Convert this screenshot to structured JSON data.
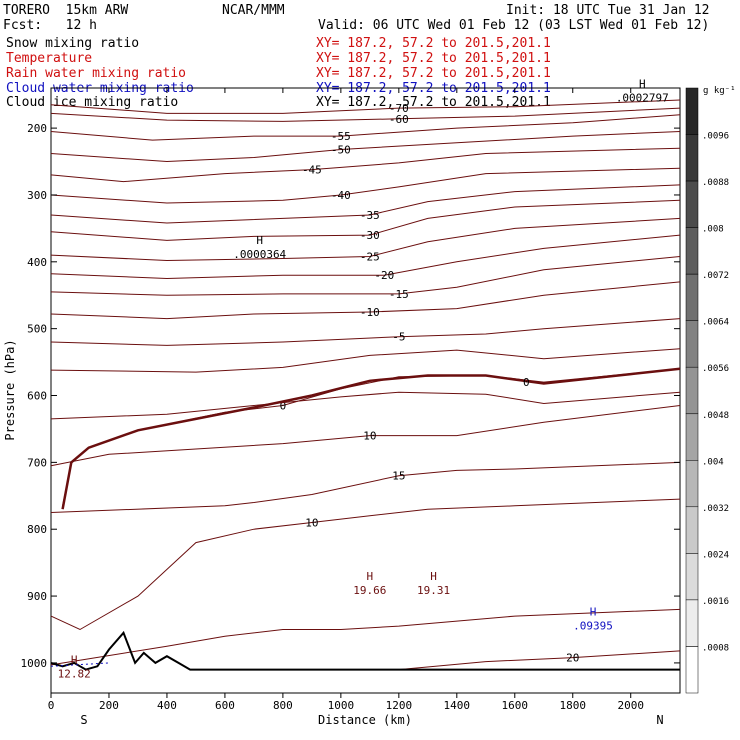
{
  "header": {
    "model": "TORERO  15km ARW",
    "center": "NCAR/MMM",
    "init": "Init: 18 UTC Tue 31 Jan 12",
    "fcst": "Fcst:   12 h",
    "valid": "Valid: 06 UTC Wed 01 Feb 12 (03 LST Wed 01 Feb 12)"
  },
  "fields": [
    {
      "name": "Snow mixing ratio",
      "xy": "XY= 187.2, 57.2 to 201.5,201.1",
      "color": "#000000"
    },
    {
      "name": "Temperature",
      "xy": "XY= 187.2, 57.2 to 201.5,201.1",
      "color": "#d01010"
    },
    {
      "name": "Rain water mixing ratio",
      "xy": "XY= 187.2, 57.2 to 201.5,201.1",
      "color": "#d01010"
    },
    {
      "name": "Cloud water mixing ratio",
      "xy": "XY= 187.2, 57.2 to 201.5,201.1",
      "color": "#1010c0"
    },
    {
      "name": "Cloud ice mixing ratio",
      "xy": "XY= 187.2, 57.2 to 201.5,201.1",
      "color": "#000000"
    }
  ],
  "chart_data": {
    "type": "contour-cross-section",
    "xlabel": "Distance (km)",
    "ylabel": "Pressure (hPa)",
    "xlim": [
      0,
      2170
    ],
    "ylim": [
      1045,
      140
    ],
    "x_ticks": [
      0,
      200,
      400,
      600,
      800,
      1000,
      1200,
      1400,
      1600,
      1800,
      2000
    ],
    "x_tick_labels": [
      "0",
      "200",
      "400",
      "600",
      "800",
      "1000",
      "1200",
      "1400",
      "1600",
      "1800",
      "2000"
    ],
    "y_ticks": [
      200,
      300,
      400,
      500,
      600,
      700,
      800,
      900,
      1000
    ],
    "y_tick_labels": [
      "200",
      "300",
      "400",
      "500",
      "600",
      "700",
      "800",
      "900",
      "1000"
    ],
    "end_labels": {
      "left": "S",
      "right": "N"
    },
    "colorbar": {
      "units": "g kg⁻¹",
      "labels": [
        ".0096",
        ".0088",
        ".008",
        ".0072",
        ".0064",
        ".0056",
        ".0048",
        ".004",
        ".0032",
        ".0024",
        ".0016",
        ".0008"
      ],
      "levels": [
        0.0096,
        0.0088,
        0.008,
        0.0072,
        0.0064,
        0.0056,
        0.0048,
        0.004,
        0.0032,
        0.0024,
        0.0016,
        0.0008
      ]
    },
    "temperature_contours": [
      {
        "label": "-70",
        "level": -70,
        "color": "#6b0f0f",
        "points": [
          [
            0,
            165
          ],
          [
            400,
            178
          ],
          [
            800,
            178
          ],
          [
            1200,
            170
          ],
          [
            1600,
            168
          ],
          [
            2170,
            158
          ]
        ]
      },
      {
        "label": "-60",
        "level": -60,
        "color": "#6b0f0f",
        "points": [
          [
            0,
            178
          ],
          [
            400,
            188
          ],
          [
            800,
            190
          ],
          [
            1200,
            186
          ],
          [
            1600,
            182
          ],
          [
            2170,
            170
          ]
        ]
      },
      {
        "label": "-55",
        "level": -55,
        "color": "#6b0f0f",
        "points": [
          [
            0,
            205
          ],
          [
            350,
            218
          ],
          [
            700,
            212
          ],
          [
            1000,
            212
          ],
          [
            1400,
            200
          ],
          [
            1800,
            192
          ],
          [
            2170,
            180
          ]
        ]
      },
      {
        "label": "-50",
        "level": -50,
        "color": "#6b0f0f",
        "points": [
          [
            0,
            238
          ],
          [
            400,
            250
          ],
          [
            700,
            244
          ],
          [
            1000,
            232
          ],
          [
            1400,
            222
          ],
          [
            1800,
            212
          ],
          [
            2170,
            205
          ]
        ]
      },
      {
        "label": "-45",
        "level": -45,
        "color": "#6b0f0f",
        "points": [
          [
            0,
            270
          ],
          [
            250,
            280
          ],
          [
            600,
            268
          ],
          [
            900,
            262
          ],
          [
            1200,
            252
          ],
          [
            1500,
            238
          ],
          [
            2170,
            230
          ]
        ]
      },
      {
        "label": "-40",
        "level": -40,
        "color": "#6b0f0f",
        "points": [
          [
            0,
            300
          ],
          [
            400,
            312
          ],
          [
            800,
            308
          ],
          [
            1000,
            300
          ],
          [
            1200,
            288
          ],
          [
            1500,
            268
          ],
          [
            2170,
            260
          ]
        ]
      },
      {
        "label": "-35",
        "level": -35,
        "color": "#6b0f0f",
        "points": [
          [
            0,
            330
          ],
          [
            400,
            342
          ],
          [
            800,
            335
          ],
          [
            1100,
            330
          ],
          [
            1300,
            310
          ],
          [
            1600,
            295
          ],
          [
            2170,
            285
          ]
        ]
      },
      {
        "label": "-30",
        "level": -30,
        "color": "#6b0f0f",
        "points": [
          [
            0,
            355
          ],
          [
            400,
            368
          ],
          [
            700,
            362
          ],
          [
            1100,
            360
          ],
          [
            1300,
            335
          ],
          [
            1600,
            318
          ],
          [
            2170,
            308
          ]
        ]
      },
      {
        "label": "-25",
        "level": -25,
        "color": "#6b0f0f",
        "points": [
          [
            0,
            390
          ],
          [
            400,
            398
          ],
          [
            800,
            395
          ],
          [
            1100,
            392
          ],
          [
            1300,
            370
          ],
          [
            1600,
            350
          ],
          [
            2170,
            335
          ]
        ]
      },
      {
        "label": "-20",
        "level": -20,
        "color": "#6b0f0f",
        "points": [
          [
            0,
            418
          ],
          [
            400,
            425
          ],
          [
            800,
            420
          ],
          [
            1150,
            420
          ],
          [
            1400,
            400
          ],
          [
            1700,
            380
          ],
          [
            2170,
            360
          ]
        ]
      },
      {
        "label": "-15",
        "level": -15,
        "color": "#6b0f0f",
        "points": [
          [
            0,
            445
          ],
          [
            400,
            450
          ],
          [
            800,
            448
          ],
          [
            1200,
            448
          ],
          [
            1400,
            438
          ],
          [
            1700,
            412
          ],
          [
            2170,
            392
          ]
        ]
      },
      {
        "label": "-10",
        "level": -10,
        "color": "#6b0f0f",
        "points": [
          [
            0,
            478
          ],
          [
            400,
            485
          ],
          [
            700,
            478
          ],
          [
            1100,
            475
          ],
          [
            1400,
            470
          ],
          [
            1700,
            450
          ],
          [
            2170,
            430
          ]
        ]
      },
      {
        "label": "-5",
        "level": -5,
        "color": "#6b0f0f",
        "points": [
          [
            0,
            520
          ],
          [
            400,
            525
          ],
          [
            800,
            520
          ],
          [
            1200,
            512
          ],
          [
            1500,
            508
          ],
          [
            1700,
            500
          ],
          [
            2170,
            485
          ]
        ]
      },
      {
        "label": "",
        "level": -2,
        "color": "#6b0f0f",
        "points": [
          [
            0,
            562
          ],
          [
            500,
            565
          ],
          [
            800,
            558
          ],
          [
            1100,
            540
          ],
          [
            1400,
            532
          ],
          [
            1700,
            545
          ],
          [
            2170,
            530
          ]
        ]
      },
      {
        "label": "0",
        "level": 0,
        "color": "#6b0f0f",
        "points": [
          [
            40,
            765
          ],
          [
            70,
            700
          ],
          [
            130,
            678
          ],
          [
            300,
            652
          ],
          [
            600,
            625
          ],
          [
            800,
            615
          ],
          [
            1000,
            590
          ],
          [
            1200,
            572
          ],
          [
            1500,
            570
          ],
          [
            1700,
            580
          ],
          [
            2170,
            560
          ]
        ]
      },
      {
        "label": "",
        "level": 2,
        "color": "#6b0f0f",
        "points": [
          [
            0,
            635
          ],
          [
            400,
            628
          ],
          [
            700,
            615
          ],
          [
            1000,
            602
          ],
          [
            1200,
            595
          ],
          [
            1500,
            598
          ],
          [
            1700,
            612
          ],
          [
            2170,
            595
          ]
        ]
      },
      {
        "label": "10",
        "level": 10,
        "color": "#6b0f0f",
        "points": [
          [
            0,
            705
          ],
          [
            200,
            688
          ],
          [
            500,
            680
          ],
          [
            800,
            672
          ],
          [
            1100,
            660
          ],
          [
            1400,
            660
          ],
          [
            1700,
            640
          ],
          [
            2170,
            615
          ]
        ]
      },
      {
        "label": "15",
        "level": 15,
        "color": "#6b0f0f",
        "points": [
          [
            0,
            775
          ],
          [
            600,
            765
          ],
          [
            700,
            760
          ],
          [
            900,
            748
          ],
          [
            1200,
            720
          ],
          [
            1400,
            712
          ],
          [
            1600,
            710
          ],
          [
            2170,
            700
          ]
        ]
      },
      {
        "label": "10",
        "level": 10,
        "color": "#6b0f0f",
        "points": [
          [
            0,
            930
          ],
          [
            100,
            950
          ],
          [
            300,
            900
          ],
          [
            500,
            820
          ],
          [
            700,
            800
          ],
          [
            900,
            790
          ],
          [
            1100,
            780
          ],
          [
            1300,
            770
          ],
          [
            1600,
            765
          ],
          [
            2170,
            755
          ]
        ]
      },
      {
        "label": "",
        "level": 20,
        "color": "#6b0f0f",
        "points": [
          [
            0,
            1003
          ],
          [
            400,
            975
          ],
          [
            600,
            960
          ],
          [
            800,
            950
          ],
          [
            1000,
            950
          ],
          [
            1200,
            945
          ],
          [
            1600,
            930
          ],
          [
            2170,
            920
          ]
        ]
      },
      {
        "label": "20",
        "level": 20,
        "color": "#6b0f0f",
        "points": [
          [
            1200,
            1010
          ],
          [
            1500,
            998
          ],
          [
            1800,
            992
          ],
          [
            2170,
            982
          ]
        ]
      }
    ],
    "zero_isotherm": {
      "label": "0",
      "color": "#6b0f0f",
      "points": [
        [
          40,
          770
        ],
        [
          70,
          700
        ],
        [
          130,
          678
        ],
        [
          300,
          652
        ],
        [
          500,
          635
        ],
        [
          700,
          618
        ],
        [
          900,
          600
        ],
        [
          1100,
          578
        ],
        [
          1300,
          570
        ],
        [
          1500,
          570
        ],
        [
          1700,
          582
        ],
        [
          2000,
          568
        ],
        [
          2170,
          560
        ]
      ]
    },
    "cloud_ice_dotted": {
      "color": "#1010c0",
      "points": [
        [
          0,
          1005
        ],
        [
          200,
          1000
        ]
      ]
    },
    "terrain": {
      "color": "#000000",
      "points": [
        [
          0,
          1000
        ],
        [
          40,
          1005
        ],
        [
          80,
          1000
        ],
        [
          120,
          1010
        ],
        [
          160,
          1005
        ],
        [
          200,
          980
        ],
        [
          250,
          955
        ],
        [
          290,
          1000
        ],
        [
          320,
          985
        ],
        [
          360,
          1000
        ],
        [
          400,
          990
        ],
        [
          440,
          1000
        ],
        [
          480,
          1010
        ],
        [
          2170,
          1010
        ]
      ]
    },
    "extrema": [
      {
        "type": "H",
        "value": "19.66",
        "x": 1100,
        "p": 885,
        "color": "#6b0f0f"
      },
      {
        "type": "H",
        "value": "19.31",
        "x": 1320,
        "p": 885,
        "color": "#6b0f0f"
      },
      {
        "type": "H",
        "value": ".09395",
        "x": 1870,
        "p": 938,
        "color": "#1010c0"
      },
      {
        "type": "H",
        "value": "12.82",
        "x": 80,
        "p": 1010,
        "color": "#6b0f0f"
      },
      {
        "type": "H",
        "value": ".0000364",
        "x": 720,
        "p": 382,
        "color": "#000000"
      },
      {
        "type": "H",
        "value": ".0002797",
        "x": 2040,
        "p": 148,
        "color": "#000000"
      }
    ]
  }
}
